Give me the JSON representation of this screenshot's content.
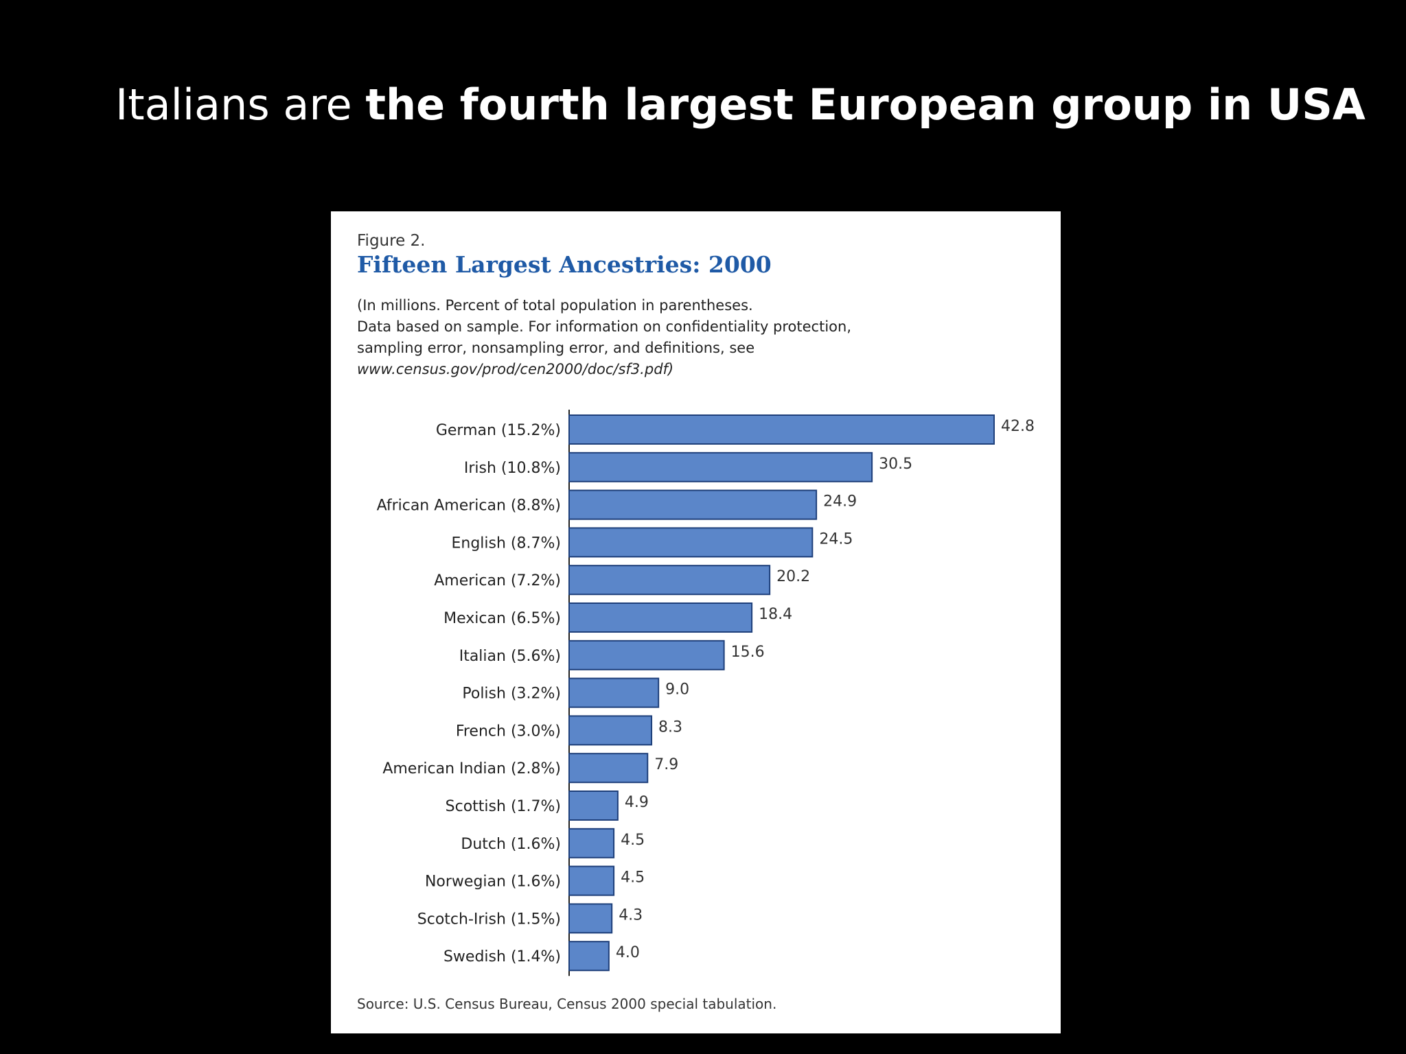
{
  "slide": {
    "title_normal": "Italians are ",
    "title_bold": "the fourth largest European group in USA"
  },
  "figure": {
    "label": "Figure 2.",
    "notes": [
      "(In millions. Percent of total population in parentheses.",
      "Data based on sample.  For information on confidentiality protection,",
      "sampling error, nonsampling error, and definitions, see"
    ],
    "url": "www.census.gov/prod/cen2000/doc/sf3.pdf)",
    "source": "Source:  U.S. Census Bureau, Census 2000 special tabulation."
  },
  "colors": {
    "bar_fill": "#5b86c9",
    "bar_stroke": "#1e3f7a",
    "title_blue": "#1f5aa6"
  },
  "chart_data": {
    "type": "bar",
    "orientation": "horizontal",
    "title": "Fifteen Largest Ancestries: 2000",
    "categories": [
      "German (15.2%)",
      "Irish (10.8%)",
      "African American (8.8%)",
      "English (8.7%)",
      "American (7.2%)",
      "Mexican (6.5%)",
      "Italian (5.6%)",
      "Polish (3.2%)",
      "French (3.0%)",
      "American Indian (2.8%)",
      "Scottish (1.7%)",
      "Dutch (1.6%)",
      "Norwegian (1.6%)",
      "Scotch-Irish (1.5%)",
      "Swedish  (1.4%)"
    ],
    "values": [
      42.8,
      30.5,
      24.9,
      24.5,
      20.2,
      18.4,
      15.6,
      9.0,
      8.3,
      7.9,
      4.9,
      4.5,
      4.5,
      4.3,
      4.0
    ],
    "value_labels": [
      "42.8",
      "30.5",
      "24.9",
      "24.5",
      "20.2",
      "18.4",
      "15.6",
      "9.0",
      "8.3",
      "7.9",
      "4.9",
      "4.5",
      "4.5",
      "4.3",
      "4.0"
    ],
    "xlim": [
      0,
      42.8
    ],
    "grid": false,
    "legend": "none"
  }
}
